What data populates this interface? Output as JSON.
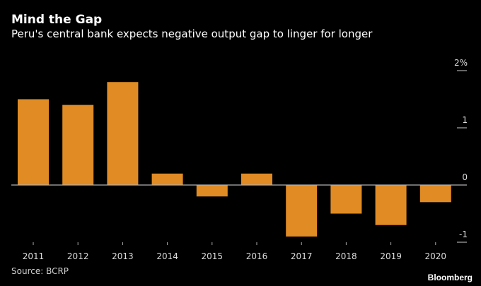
{
  "chart_data": {
    "type": "bar",
    "title": "Mind the Gap",
    "subtitle": "Peru's central bank expects negative output gap to linger for longer",
    "categories": [
      "2011",
      "2012",
      "2013",
      "2014",
      "2015",
      "2016",
      "2017",
      "2018",
      "2019",
      "2020"
    ],
    "values": [
      1.5,
      1.4,
      1.8,
      0.2,
      -0.2,
      0.2,
      -0.9,
      -0.5,
      -0.7,
      -0.3
    ],
    "xlabel": "",
    "ylabel": "",
    "ylim": [
      -1,
      2
    ],
    "yticks": [
      {
        "value": 2,
        "label": "2%"
      },
      {
        "value": 1,
        "label": "1"
      },
      {
        "value": 0,
        "label": "0"
      },
      {
        "value": -1,
        "label": "-1"
      }
    ],
    "y_axis_position": "right",
    "bar_color": "#e08b24",
    "grid": false,
    "source": "Source: BCRP",
    "brand": "Bloomberg"
  }
}
